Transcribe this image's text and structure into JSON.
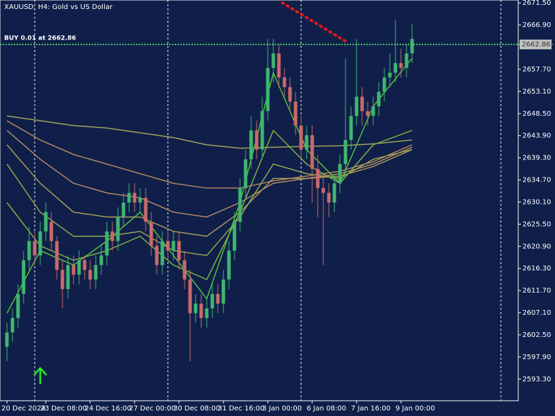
{
  "chart_data": {
    "type": "candlestick",
    "title": "XAUUSD, H4:  Gold vs US Dollar",
    "categories": [
      "20 Dec 2024",
      null,
      null,
      null,
      null,
      null,
      null,
      "23 Dec 08:00",
      null,
      null,
      null,
      null,
      null,
      null,
      null,
      "24 Dec 16:00",
      null,
      null,
      null,
      null,
      null,
      null,
      null,
      "27 Dec 00:00",
      null,
      null,
      null,
      null,
      null,
      null,
      null,
      "30 Dec 08:00",
      null,
      null,
      null,
      null,
      null,
      null,
      null,
      "31 Dec 16:00",
      null,
      null,
      null,
      null,
      null,
      null,
      null,
      "3 Jan 00:00",
      null,
      null,
      null,
      null,
      null,
      null,
      null,
      "6 Jan 08:00",
      null,
      null,
      null,
      null,
      null,
      null,
      null,
      "7 Jan 16:00",
      null,
      null,
      null,
      null,
      null,
      null,
      null,
      "9 Jan 00:00",
      null,
      null
    ],
    "open": [
      2600,
      2603,
      2606,
      2611,
      2618,
      2622,
      2619,
      2624,
      2626,
      2622,
      2616,
      2612,
      2617,
      2615,
      2618,
      2616,
      2614,
      2617,
      2619,
      2624,
      2622,
      2627,
      2630,
      2632,
      2630,
      2631,
      2626,
      2621,
      2617,
      2622,
      2620,
      2622,
      2618,
      2614,
      2607,
      2609,
      2606,
      2608,
      2611,
      2609,
      2614,
      2620,
      2626,
      2633,
      2639,
      2645,
      2641,
      2649,
      2658,
      2661,
      2656,
      2654,
      2651,
      2646,
      2641,
      2644,
      2637,
      2633,
      2632,
      2630,
      2634,
      2638,
      2643,
      2648,
      2652,
      2649,
      2648,
      2650,
      2653,
      2656,
      2657,
      2659,
      2658,
      2661
    ],
    "high": [
      2605,
      2608,
      2613,
      2620,
      2625,
      2624,
      2626,
      2630,
      2628,
      2623,
      2618,
      2619,
      2619,
      2620,
      2619,
      2618,
      2619,
      2621,
      2626,
      2626,
      2629,
      2632,
      2634,
      2634,
      2633,
      2633,
      2628,
      2623,
      2624,
      2624,
      2624,
      2624,
      2620,
      2616,
      2611,
      2611,
      2610,
      2613,
      2613,
      2616,
      2622,
      2628,
      2635,
      2641,
      2648,
      2647,
      2652,
      2664,
      2664,
      2663,
      2658,
      2656,
      2653,
      2648,
      2646,
      2646,
      2640,
      2636,
      2634,
      2636,
      2640,
      2660,
      2650,
      2664,
      2654,
      2651,
      2652,
      2655,
      2658,
      2661,
      2668,
      2662,
      2663,
      2667
    ],
    "low": [
      2597,
      2601,
      2604,
      2609,
      2616,
      2617,
      2617,
      2622,
      2620,
      2614,
      2608,
      2610,
      2613,
      2613,
      2614,
      2612,
      2612,
      2615,
      2617,
      2620,
      2620,
      2625,
      2628,
      2628,
      2628,
      2624,
      2619,
      2615,
      2615,
      2618,
      2618,
      2616,
      2612,
      2597,
      2605,
      2604,
      2604,
      2606,
      2607,
      2607,
      2612,
      2618,
      2624,
      2631,
      2637,
      2639,
      2639,
      2647,
      2655,
      2654,
      2652,
      2649,
      2644,
      2639,
      2639,
      2630,
      2627,
      2617,
      2627,
      2628,
      2632,
      2636,
      2641,
      2646,
      2646,
      2646,
      2646,
      2648,
      2651,
      2654,
      2655,
      2656,
      2656,
      2659
    ],
    "close": [
      2603,
      2606,
      2611,
      2618,
      2622,
      2619,
      2624,
      2628,
      2622,
      2616,
      2612,
      2617,
      2615,
      2618,
      2616,
      2614,
      2617,
      2619,
      2624,
      2622,
      2627,
      2630,
      2632,
      2630,
      2631,
      2626,
      2621,
      2617,
      2622,
      2620,
      2622,
      2618,
      2614,
      2607,
      2609,
      2606,
      2608,
      2611,
      2609,
      2614,
      2620,
      2626,
      2633,
      2639,
      2645,
      2641,
      2649,
      2658,
      2661,
      2656,
      2654,
      2651,
      2646,
      2641,
      2644,
      2637,
      2633,
      2632,
      2630,
      2634,
      2638,
      2643,
      2648,
      2652,
      2649,
      2648,
      2650,
      2653,
      2656,
      2657,
      2659,
      2658,
      2661,
      2664
    ],
    "up_color": "#3fb66f",
    "down_color": "#c96a6a",
    "ma_x": [
      0,
      6,
      12,
      18,
      24,
      30,
      36,
      42,
      48,
      54,
      60,
      66,
      73
    ],
    "moving_averages": [
      {
        "color": "#a3a35c",
        "values": [
          2648,
          2647,
          2646,
          2645.5,
          2644.5,
          2643.5,
          2642,
          2641.3,
          2641.5,
          2641.7,
          2641.8,
          2642.2,
          2643
        ]
      },
      {
        "color": "#b2855f",
        "values": [
          2647,
          2643,
          2640,
          2638,
          2636,
          2634,
          2633,
          2633,
          2634.5,
          2635.5,
          2636.5,
          2638.5,
          2642
        ]
      },
      {
        "color": "#b48a63",
        "values": [
          2645,
          2639,
          2634,
          2632,
          2631,
          2628,
          2627,
          2630,
          2634,
          2635,
          2636,
          2638,
          2641.5
        ]
      },
      {
        "color": "#a99a57",
        "values": [
          2642,
          2634,
          2628,
          2627,
          2627,
          2624,
          2623,
          2628,
          2635,
          2635,
          2635.5,
          2637.5,
          2641
        ]
      },
      {
        "color": "#97a64c",
        "values": [
          2638,
          2628,
          2623,
          2623,
          2624,
          2620,
          2619,
          2627,
          2638,
          2636,
          2635,
          2639,
          2641
        ]
      },
      {
        "color": "#7fb143",
        "values": [
          2630,
          2621,
          2618,
          2620,
          2623,
          2617,
          2614,
          2628,
          2645,
          2638,
          2634,
          2642,
          2645
        ]
      },
      {
        "color": "#52c23a",
        "values": [
          2607,
          2620,
          2617,
          2622,
          2628,
          2619,
          2610,
          2630,
          2657,
          2641,
          2634,
          2650,
          2660
        ]
      }
    ],
    "order_label": "BUY 0.01 at 2662.86",
    "current_price": {
      "value": 2662.86,
      "label": "2662.86"
    },
    "ylim": [
      2588.8,
      2672.1
    ],
    "yticks": [
      {
        "value": 2671.5,
        "label": "2671.50"
      },
      {
        "value": 2666.9,
        "label": "2666.90"
      },
      {
        "value": 2657.7,
        "label": "2657.70"
      },
      {
        "value": 2653.1,
        "label": "2653.10"
      },
      {
        "value": 2648.5,
        "label": "2648.50"
      },
      {
        "value": 2643.9,
        "label": "2643.90"
      },
      {
        "value": 2639.3,
        "label": "2639.30"
      },
      {
        "value": 2634.7,
        "label": "2634.70"
      },
      {
        "value": 2630.1,
        "label": "2630.10"
      },
      {
        "value": 2625.5,
        "label": "2625.50"
      },
      {
        "value": 2620.9,
        "label": "2620.90"
      },
      {
        "value": 2616.3,
        "label": "2616.30"
      },
      {
        "value": 2611.7,
        "label": "2611.70"
      },
      {
        "value": 2607.1,
        "label": "2607.10"
      },
      {
        "value": 2602.5,
        "label": "2602.50"
      },
      {
        "value": 2597.9,
        "label": "2597.90"
      },
      {
        "value": 2593.3,
        "label": "2593.30"
      }
    ]
  }
}
